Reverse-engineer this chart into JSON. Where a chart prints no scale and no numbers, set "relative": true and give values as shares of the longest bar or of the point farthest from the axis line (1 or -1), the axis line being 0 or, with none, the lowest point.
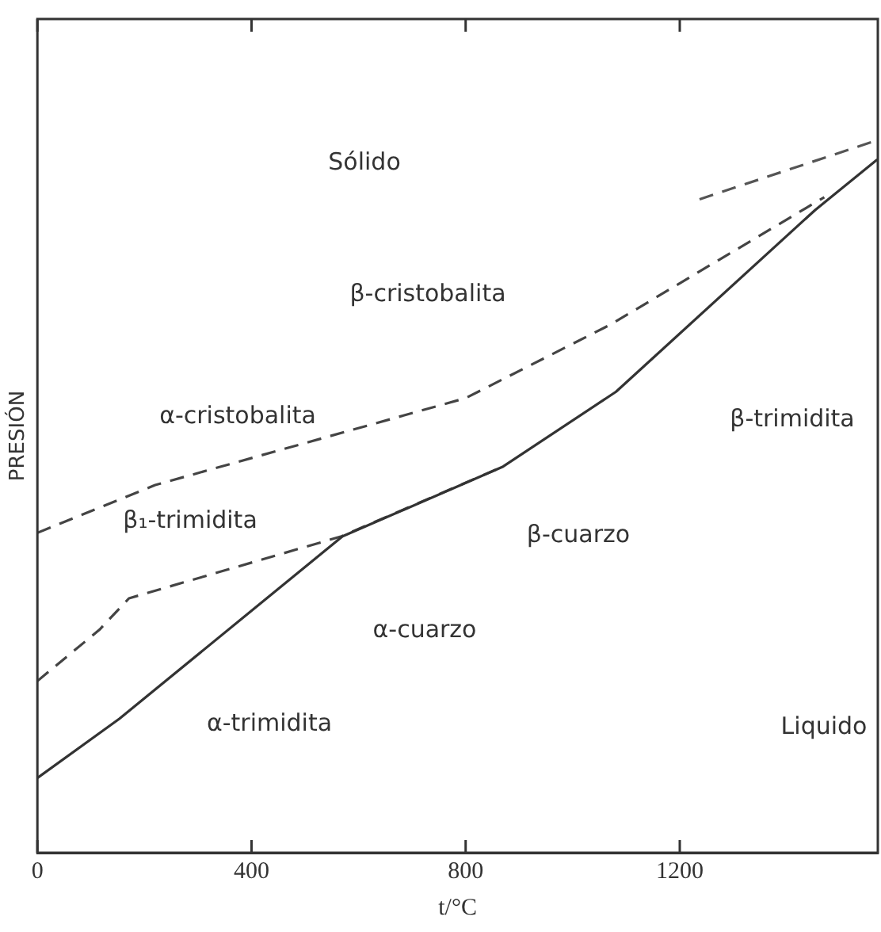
{
  "chart_data": {
    "type": "line",
    "xlabel": "t/°C",
    "ylabel": "PRESIÓN",
    "relative": true,
    "xlim": [
      0,
      1570
    ],
    "xticks": [
      0,
      400,
      800,
      1200
    ],
    "grid": false,
    "legend": false,
    "marker": "none",
    "series": [
      {
        "color": "#333333",
        "line_style": "solid",
        "x": [
          0,
          153,
          570,
          870,
          1081,
          1453,
          1569
        ],
        "values": [
          0.105,
          0.188,
          0.444,
          0.542,
          0.647,
          0.902,
          0.973
        ]
      },
      {
        "color": "#444444",
        "line_style": "dashed",
        "x": [
          0,
          220,
          800,
          1070,
          1470
        ],
        "values": [
          0.449,
          0.516,
          0.638,
          0.741,
          0.92
        ]
      },
      {
        "color": "#555555",
        "line_style": "dashed",
        "x": [
          1237,
          1569
        ],
        "values": [
          0.917,
          1.0
        ]
      },
      {
        "color": "#444444",
        "line_style": "dashed",
        "x": [
          0,
          116,
          171,
          568,
          870
        ],
        "values": [
          0.241,
          0.313,
          0.357,
          0.444,
          0.542
        ]
      }
    ],
    "annotations": [
      "Sólido",
      "β-cristobalita",
      "α-cristobalita",
      "β₁-trimidita",
      "β-cuarzo",
      "α-cuarzo",
      "Liquido",
      "α-trimidita",
      "β-trimidita"
    ]
  }
}
